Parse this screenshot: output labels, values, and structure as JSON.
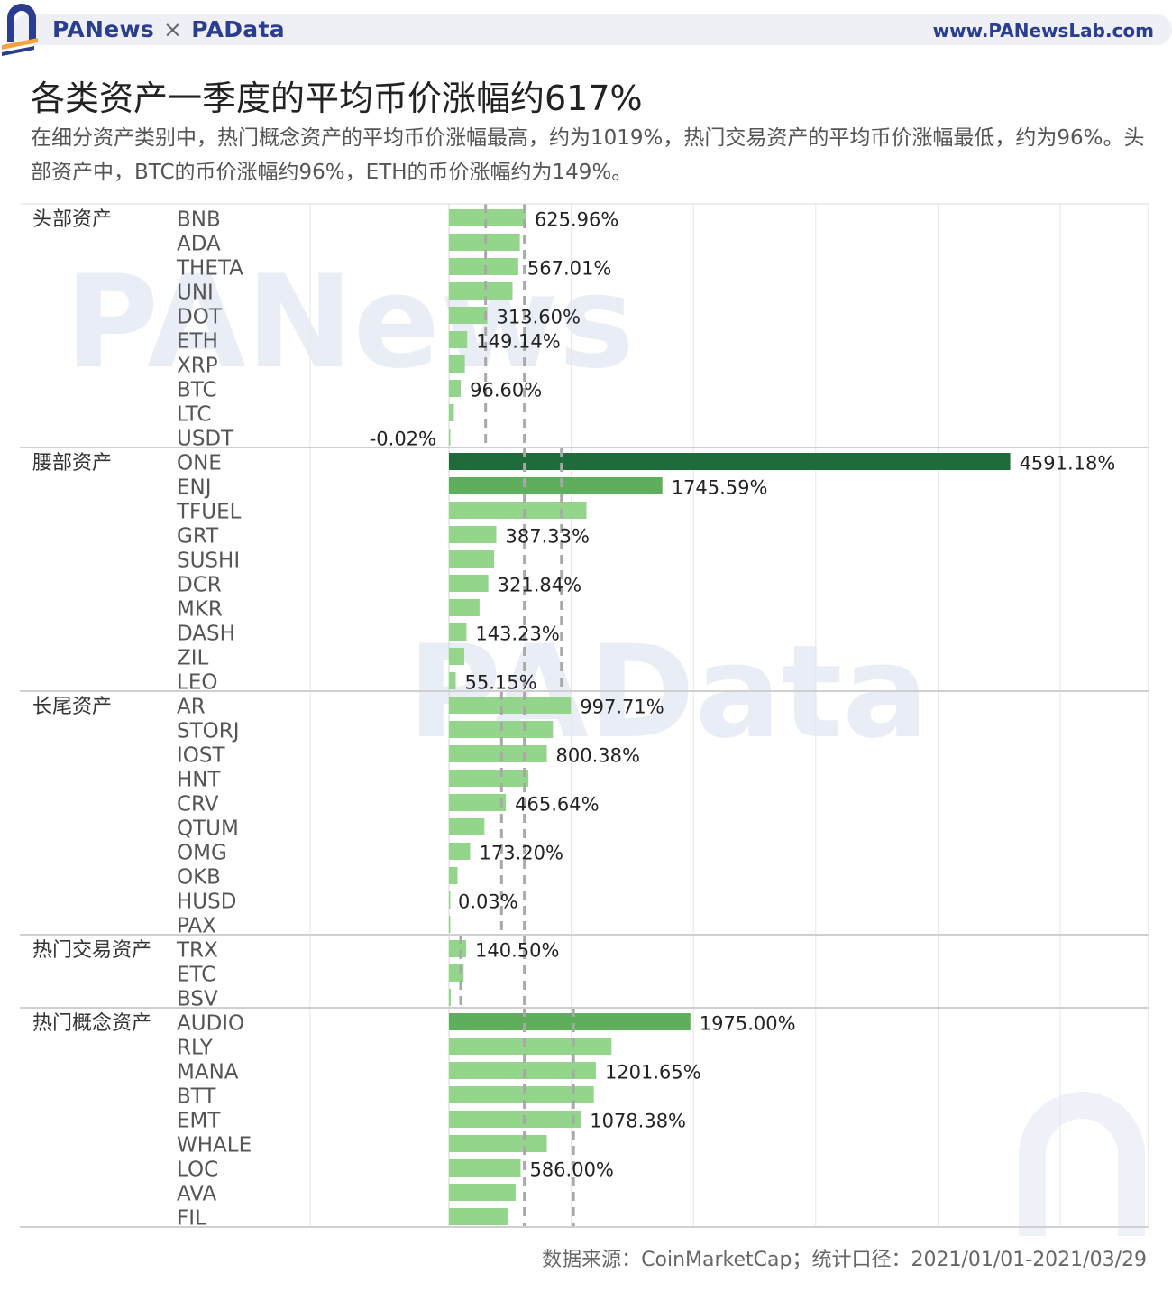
{
  "header": {
    "brand_left": "PANews",
    "brand_sep": "×",
    "brand_right": "PAData",
    "website": "www.PANewsLab.com"
  },
  "title": "各类资产一季度的平均币价涨幅约617%",
  "subtitle": "在细分资产类别中，热门概念资产的平均币价涨幅最高，约为1019%，热门交易资产的平均币价涨幅最低，约为96%。头部资产中，BTC的币价涨幅约96%，ETH的币价涨幅约为149%。",
  "source": "数据来源：CoinMarketCap；统计口径：2021/01/01-2021/03/29",
  "watermarks": [
    "PANews",
    "PAData"
  ],
  "colors": {
    "bar_light": "#93d58a",
    "bar_mid": "#5fae5c",
    "bar_dark": "#1f6b3b",
    "grid": "#e6e6e6",
    "avg_line": "#a8a8a8",
    "text": "#333333",
    "brand": "#2a3d8f",
    "accent": "#f4a340"
  },
  "chart_data": {
    "type": "bar",
    "orientation": "horizontal",
    "unit": "%",
    "xlim": [
      -1000,
      5600
    ],
    "grid": true,
    "groups": [
      {
        "name": "头部资产",
        "avg_lines": [
          300,
          617
        ],
        "items": [
          {
            "name": "BNB",
            "value": 625.96,
            "label": "625.96%"
          },
          {
            "name": "ADA",
            "value": 580,
            "label": ""
          },
          {
            "name": "THETA",
            "value": 567.01,
            "label": "567.01%"
          },
          {
            "name": "UNI",
            "value": 520,
            "label": ""
          },
          {
            "name": "DOT",
            "value": 313.6,
            "label": "313.60%"
          },
          {
            "name": "ETH",
            "value": 149.14,
            "label": "149.14%"
          },
          {
            "name": "XRP",
            "value": 130,
            "label": ""
          },
          {
            "name": "BTC",
            "value": 96.6,
            "label": "96.60%"
          },
          {
            "name": "LTC",
            "value": 40,
            "label": ""
          },
          {
            "name": "USDT",
            "value": -0.02,
            "label": "-0.02%"
          }
        ]
      },
      {
        "name": "腰部资产",
        "avg_lines": [
          617,
          920
        ],
        "items": [
          {
            "name": "ONE",
            "value": 4591.18,
            "label": "4591.18%"
          },
          {
            "name": "ENJ",
            "value": 1745.59,
            "label": "1745.59%"
          },
          {
            "name": "TFUEL",
            "value": 1125,
            "label": ""
          },
          {
            "name": "GRT",
            "value": 387.33,
            "label": "387.33%"
          },
          {
            "name": "SUSHI",
            "value": 370,
            "label": ""
          },
          {
            "name": "DCR",
            "value": 321.84,
            "label": "321.84%"
          },
          {
            "name": "MKR",
            "value": 250,
            "label": ""
          },
          {
            "name": "DASH",
            "value": 143.23,
            "label": "143.23%"
          },
          {
            "name": "ZIL",
            "value": 125,
            "label": ""
          },
          {
            "name": "LEO",
            "value": 55.15,
            "label": "55.15%"
          }
        ]
      },
      {
        "name": "长尾资产",
        "avg_lines": [
          430,
          617
        ],
        "items": [
          {
            "name": "AR",
            "value": 997.71,
            "label": "997.71%"
          },
          {
            "name": "STORJ",
            "value": 850,
            "label": ""
          },
          {
            "name": "IOST",
            "value": 800.38,
            "label": "800.38%"
          },
          {
            "name": "HNT",
            "value": 650,
            "label": ""
          },
          {
            "name": "CRV",
            "value": 465.64,
            "label": "465.64%"
          },
          {
            "name": "QTUM",
            "value": 290,
            "label": ""
          },
          {
            "name": "OMG",
            "value": 173.2,
            "label": "173.20%"
          },
          {
            "name": "OKB",
            "value": 70,
            "label": ""
          },
          {
            "name": "HUSD",
            "value": 0.03,
            "label": "0.03%"
          },
          {
            "name": "PAX",
            "value": 0.01,
            "label": ""
          }
        ]
      },
      {
        "name": "热门交易资产",
        "avg_lines": [
          96,
          617
        ],
        "items": [
          {
            "name": "TRX",
            "value": 140.5,
            "label": "140.50%"
          },
          {
            "name": "ETC",
            "value": 120,
            "label": ""
          },
          {
            "name": "BSV",
            "value": 15,
            "label": ""
          }
        ]
      },
      {
        "name": "热门概念资产",
        "avg_lines": [
          617,
          1019
        ],
        "items": [
          {
            "name": "AUDIO",
            "value": 1975.0,
            "label": "1975.00%"
          },
          {
            "name": "RLY",
            "value": 1330,
            "label": ""
          },
          {
            "name": "MANA",
            "value": 1201.65,
            "label": "1201.65%"
          },
          {
            "name": "BTT",
            "value": 1185,
            "label": ""
          },
          {
            "name": "EMT",
            "value": 1078.38,
            "label": "1078.38%"
          },
          {
            "name": "WHALE",
            "value": 800,
            "label": ""
          },
          {
            "name": "LOC",
            "value": 586.0,
            "label": "586.00%"
          },
          {
            "name": "AVA",
            "value": 545,
            "label": ""
          },
          {
            "name": "FIL",
            "value": 480,
            "label": ""
          }
        ]
      }
    ]
  }
}
